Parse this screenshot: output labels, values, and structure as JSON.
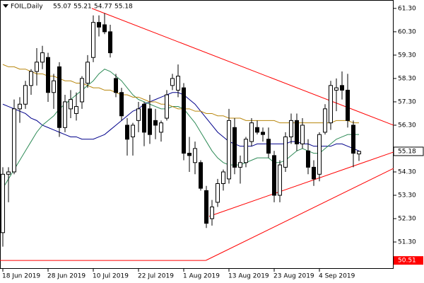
{
  "chart_data": {
    "type": "candlestick",
    "symbol": "FOIL,Daily",
    "categories": [
      "18 Jun 2019",
      null,
      null,
      null,
      null,
      null,
      null,
      null,
      "28 Jun 2019",
      null,
      null,
      null,
      null,
      null,
      null,
      null,
      "10 Jul 2019",
      null,
      null,
      null,
      null,
      null,
      null,
      null,
      "22 Jul 2019",
      null,
      null,
      null,
      null,
      null,
      null,
      null,
      "1 Aug 2019",
      null,
      null,
      null,
      null,
      null,
      null,
      null,
      "13 Aug 2019",
      null,
      null,
      null,
      null,
      null,
      null,
      null,
      "23 Aug 2019",
      null,
      null,
      null,
      null,
      null,
      null,
      null,
      "4 Sep 2019",
      null,
      null,
      null,
      null,
      null,
      null,
      null
    ],
    "open": [
      51.7,
      54.2,
      54.3,
      57.0,
      57.2,
      58.0,
      58.6,
      59.0,
      59.2,
      57.7,
      58.8,
      56.2,
      57.0,
      56.8,
      57.3,
      58.1,
      59.2,
      60.7,
      60.6,
      60.3,
      58.3,
      57.7,
      56.3,
      55.8,
      56.5,
      57.2,
      57.0,
      56.5,
      56.0,
      56.6,
      58.0,
      57.8,
      57.9,
      55.1,
      54.7,
      54.7,
      53.5,
      52.3,
      53.0,
      53.8,
      54.0,
      56.2,
      54.5,
      54.7,
      55.6,
      56.2,
      56.0,
      55.7,
      55.0,
      53.3,
      54.5,
      55.8,
      56.5,
      55.5,
      55.2,
      54.5,
      54.2,
      56.0,
      56.4,
      57.8,
      58.0,
      57.8,
      56.3,
      55.07
    ],
    "high": [
      54.5,
      54.5,
      57.4,
      57.5,
      58.2,
      58.7,
      59.6,
      59.7,
      59.4,
      58.5,
      59.0,
      57.6,
      57.8,
      57.7,
      58.4,
      59.3,
      61.0,
      61.0,
      61.1,
      60.6,
      58.5,
      57.9,
      56.6,
      56.4,
      57.3,
      57.3,
      57.6,
      57.0,
      56.5,
      57.8,
      58.5,
      58.9,
      58.1,
      55.8,
      55.6,
      54.8,
      53.7,
      53.1,
      54.0,
      54.4,
      57.0,
      56.6,
      55.0,
      55.8,
      56.6,
      56.5,
      56.2,
      56.2,
      55.2,
      54.8,
      56.0,
      56.8,
      56.8,
      56.6,
      55.7,
      54.8,
      56.0,
      57.2,
      58.2,
      58.3,
      58.6,
      58.5,
      56.5,
      55.21
    ],
    "low": [
      51.1,
      53.0,
      54.2,
      56.4,
      57.0,
      57.6,
      58.0,
      58.7,
      57.3,
      57.0,
      55.8,
      56.0,
      56.6,
      56.5,
      57.0,
      57.9,
      59.0,
      60.1,
      60.2,
      59.2,
      57.5,
      56.5,
      55.0,
      55.0,
      56.0,
      55.4,
      55.5,
      55.7,
      55.6,
      56.5,
      57.8,
      57.5,
      54.8,
      54.3,
      54.2,
      53.5,
      51.9,
      52.0,
      52.8,
      53.5,
      53.8,
      54.2,
      53.8,
      54.5,
      55.4,
      55.9,
      55.6,
      54.9,
      53.0,
      53.0,
      54.3,
      55.5,
      55.2,
      55.3,
      54.2,
      53.7,
      53.9,
      55.9,
      56.1,
      56.9,
      57.4,
      56.2,
      54.5,
      54.77
    ],
    "close": [
      54.2,
      54.3,
      57.0,
      57.2,
      58.0,
      58.6,
      59.0,
      59.4,
      57.7,
      58.2,
      56.2,
      57.3,
      57.4,
      57.1,
      58.3,
      59.0,
      60.7,
      60.5,
      60.3,
      59.4,
      57.7,
      56.7,
      55.7,
      56.3,
      57.0,
      56.0,
      55.9,
      56.3,
      56.4,
      57.6,
      58.3,
      58.4,
      55.1,
      55.0,
      55.3,
      53.6,
      52.1,
      52.8,
      53.8,
      54.3,
      56.5,
      54.5,
      54.7,
      55.7,
      56.4,
      56.0,
      55.9,
      55.1,
      53.3,
      54.6,
      55.8,
      56.5,
      55.5,
      56.3,
      54.5,
      54.0,
      55.9,
      57.0,
      58.0,
      57.9,
      57.8,
      56.5,
      55.1,
      55.18
    ],
    "lines": [
      {
        "color": "#00008b",
        "values": [
          57.2,
          57.1,
          57.0,
          56.9,
          56.8,
          56.6,
          56.5,
          56.3,
          56.2,
          56.1,
          56.0,
          55.9,
          55.8,
          55.8,
          55.7,
          55.7,
          55.7,
          55.8,
          55.9,
          56.1,
          56.3,
          56.5,
          56.7,
          56.9,
          57.0,
          57.2,
          57.3,
          57.4,
          57.5,
          57.6,
          57.7,
          57.7,
          57.6,
          57.4,
          57.2,
          56.9,
          56.6,
          56.3,
          56.0,
          55.8,
          55.6,
          55.5,
          55.4,
          55.4,
          55.4,
          55.5,
          55.5,
          55.5,
          55.5,
          55.5,
          55.5,
          55.6,
          55.6,
          55.5,
          55.5,
          55.4,
          55.4,
          55.4,
          55.4,
          55.5,
          55.5,
          55.4,
          55.3,
          55.2
        ]
      },
      {
        "color": "#2e8b57",
        "values": [
          53.6,
          54.0,
          54.4,
          54.8,
          55.2,
          55.6,
          56.0,
          56.3,
          56.5,
          56.7,
          57.0,
          57.2,
          57.4,
          57.6,
          57.8,
          58.0,
          58.2,
          58.5,
          58.7,
          58.6,
          58.4,
          58.2,
          57.9,
          57.6,
          57.4,
          57.3,
          57.2,
          57.1,
          57.0,
          57.0,
          57.1,
          57.1,
          57.0,
          56.7,
          56.4,
          56.0,
          55.6,
          55.2,
          54.9,
          54.7,
          54.6,
          54.6,
          54.6,
          54.7,
          54.8,
          54.9,
          54.9,
          54.9,
          54.7,
          54.7,
          54.8,
          55.0,
          55.2,
          55.3,
          55.2,
          55.1,
          55.1,
          55.3,
          55.5,
          55.7,
          55.8,
          55.9,
          55.9,
          55.9
        ]
      },
      {
        "color": "#b8860b",
        "values": [
          58.9,
          58.8,
          58.8,
          58.7,
          58.7,
          58.6,
          58.5,
          58.5,
          58.4,
          58.4,
          58.3,
          58.2,
          58.2,
          58.1,
          58.1,
          58.0,
          57.9,
          57.9,
          57.8,
          57.8,
          57.7,
          57.6,
          57.6,
          57.5,
          57.5,
          57.4,
          57.3,
          57.3,
          57.2,
          57.2,
          57.1,
          57.0,
          57.0,
          57.0,
          56.9,
          56.9,
          56.8,
          56.8,
          56.7,
          56.7,
          56.6,
          56.6,
          56.6,
          56.5,
          56.5,
          56.5,
          56.5,
          56.5,
          56.5,
          56.4,
          56.4,
          56.4,
          56.4,
          56.4,
          56.4,
          56.4,
          56.4,
          56.4,
          56.4,
          56.5,
          56.5,
          56.5,
          56.4,
          56.4
        ]
      }
    ],
    "trendlines": [
      {
        "x0": -0.5,
        "y0": 50.51,
        "x1": 35.9,
        "y1": 50.51,
        "color": "#ff0000"
      },
      {
        "x0": 15.75,
        "y0": 61.3,
        "x1": 69.1,
        "y1": 56.3,
        "color": "#ff0000"
      },
      {
        "x0": 35.9,
        "y0": 50.51,
        "x1": 69.1,
        "y1": 54.45,
        "color": "#ff0000"
      },
      {
        "x0": 36.5,
        "y0": 52.4,
        "x1": 69.1,
        "y1": 55.15,
        "color": "#ff0000"
      }
    ],
    "ylim": [
      50.15,
      61.66
    ],
    "yticks": [
      {
        "value": 61.3,
        "label": "61.30"
      },
      {
        "value": 60.3,
        "label": "60.30"
      },
      {
        "value": 59.3,
        "label": "59.30"
      },
      {
        "value": 58.3,
        "label": "58.30"
      },
      {
        "value": 57.3,
        "label": "57.30"
      },
      {
        "value": 56.3,
        "label": "56.30"
      },
      {
        "value": 54.3,
        "label": "54.30"
      },
      {
        "value": 53.3,
        "label": "53.30"
      },
      {
        "value": 52.3,
        "label": "52.30"
      },
      {
        "value": 51.3,
        "label": "51.30"
      }
    ]
  }
}
